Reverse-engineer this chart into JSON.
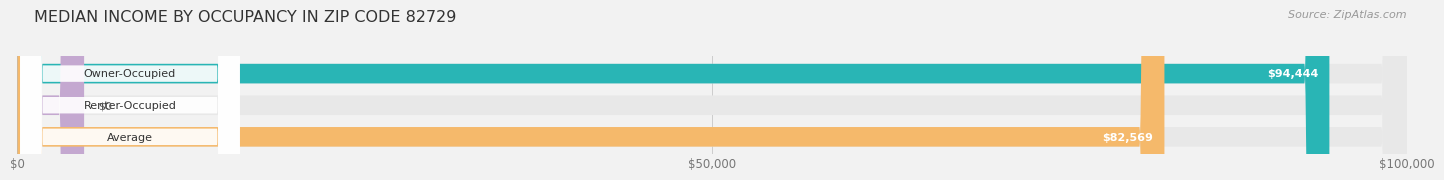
{
  "title": "MEDIAN INCOME BY OCCUPANCY IN ZIP CODE 82729",
  "source": "Source: ZipAtlas.com",
  "categories": [
    "Owner-Occupied",
    "Renter-Occupied",
    "Average"
  ],
  "values": [
    94444,
    0,
    82569
  ],
  "bar_colors": [
    "#29b5b5",
    "#c4a8d0",
    "#f5b96b"
  ],
  "bg_color": "#f2f2f2",
  "bar_bg_color": "#e8e8e8",
  "xlim": [
    0,
    100000
  ],
  "xticks": [
    0,
    50000,
    100000
  ],
  "xtick_labels": [
    "$0",
    "$50,000",
    "$100,000"
  ],
  "value_labels": [
    "$94,444",
    "$0",
    "$82,569"
  ],
  "figsize": [
    14.06,
    1.96
  ]
}
